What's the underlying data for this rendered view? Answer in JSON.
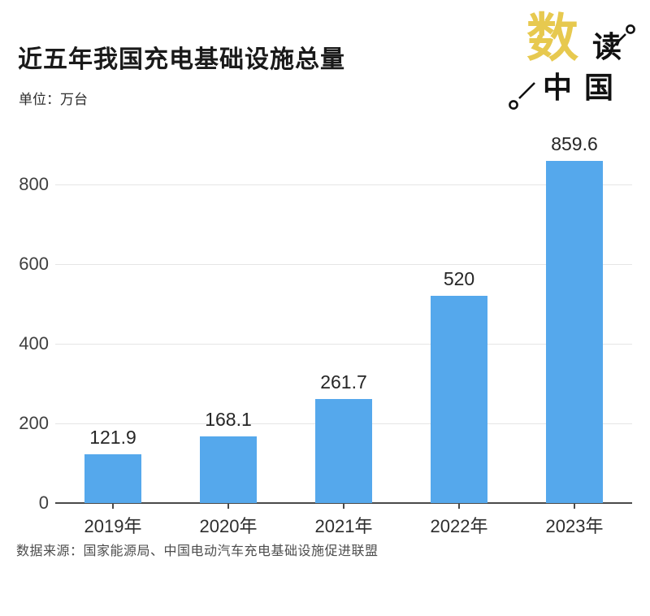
{
  "header": {
    "title": "近五年我国充电基础设施总量",
    "unit_label": "单位：万台"
  },
  "logo": {
    "char_shu": "数",
    "char_du": "读",
    "chars_zhongguo": "中国",
    "shu_color": "#E7C94F",
    "ink_color": "#111111"
  },
  "chart_data": {
    "type": "bar",
    "title": "近五年我国充电基础设施总量",
    "unit": "万台",
    "categories": [
      "2019年",
      "2020年",
      "2021年",
      "2022年",
      "2023年"
    ],
    "values": [
      121.9,
      168.1,
      261.7,
      520,
      859.6
    ],
    "ylim": [
      0,
      900
    ],
    "yticks": [
      0,
      200,
      400,
      600,
      800
    ],
    "bar_color": "#55A8EC",
    "grid": true,
    "gridline_color": "#E5E5E5",
    "axis_color": "#4A4A4A",
    "value_labels": true,
    "legend": false
  },
  "footer": {
    "source": "数据来源：国家能源局、中国电动汽车充电基础设施促进联盟"
  }
}
